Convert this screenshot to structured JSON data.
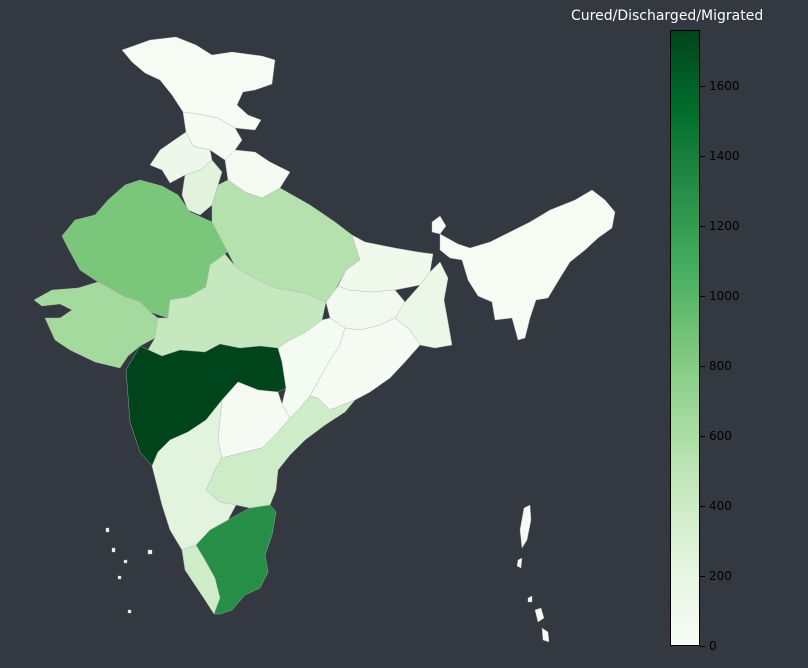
{
  "colorbar": {
    "title": "Cured/Discharged/Migrated",
    "min": 0,
    "max": 1760,
    "ticks": [
      "0",
      "200",
      "400",
      "600",
      "800",
      "1000",
      "1200",
      "1400",
      "1600"
    ],
    "colors": [
      "#f7fcf5",
      "#e5f5e0",
      "#c7e9c0",
      "#a1d99b",
      "#74c476",
      "#41ab5d",
      "#238b45",
      "#006d2c",
      "#00441b"
    ]
  },
  "background": "#343841",
  "regions": [
    {
      "name": "jammu-kashmir",
      "value": 10
    },
    {
      "name": "himachal-pradesh",
      "value": 20
    },
    {
      "name": "punjab",
      "value": 120
    },
    {
      "name": "haryana",
      "value": 250
    },
    {
      "name": "uttarakhand",
      "value": 30
    },
    {
      "name": "rajasthan",
      "value": 850
    },
    {
      "name": "uttar-pradesh",
      "value": 550
    },
    {
      "name": "gujarat",
      "value": 640
    },
    {
      "name": "madhya-pradesh",
      "value": 450
    },
    {
      "name": "maharashtra",
      "value": 1760
    },
    {
      "name": "bihar",
      "value": 90
    },
    {
      "name": "jharkhand",
      "value": 60
    },
    {
      "name": "west-bengal",
      "value": 150
    },
    {
      "name": "chhattisgarh",
      "value": 40
    },
    {
      "name": "odisha",
      "value": 30
    },
    {
      "name": "telangana",
      "value": 20
    },
    {
      "name": "andhra-pradesh",
      "value": 390
    },
    {
      "name": "karnataka",
      "value": 240
    },
    {
      "name": "kerala",
      "value": 380
    },
    {
      "name": "tamil-nadu",
      "value": 1300
    },
    {
      "name": "sikkim",
      "value": 0
    },
    {
      "name": "northeast",
      "value": 10
    },
    {
      "name": "andaman-nicobar",
      "value": 10
    },
    {
      "name": "lakshadweep",
      "value": 0
    }
  ]
}
